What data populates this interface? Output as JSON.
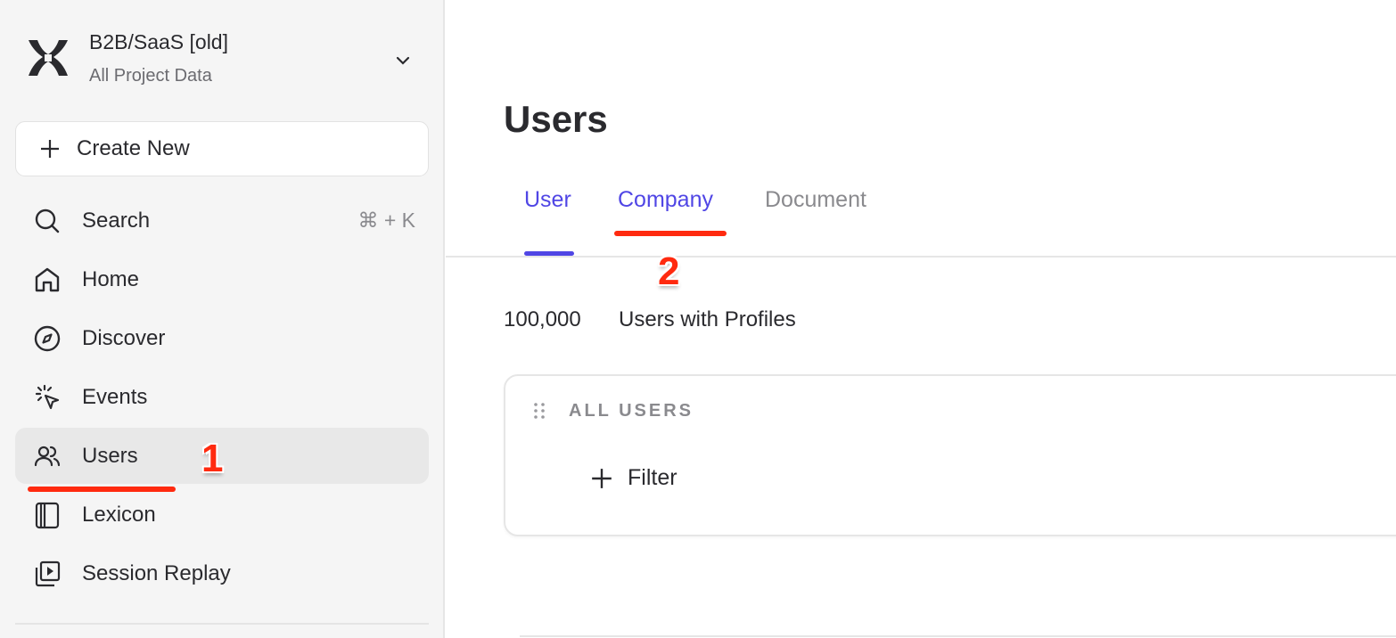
{
  "sidebar": {
    "project_title": "B2B/SaaS [old]",
    "project_subtitle": "All Project Data",
    "create_new": "Create New",
    "items": [
      {
        "label": "Search",
        "icon": "search-icon",
        "shortcut": "⌘ + K"
      },
      {
        "label": "Home",
        "icon": "home-icon"
      },
      {
        "label": "Discover",
        "icon": "compass-icon"
      },
      {
        "label": "Events",
        "icon": "cursor-click-icon"
      },
      {
        "label": "Users",
        "icon": "users-icon",
        "active": true
      },
      {
        "label": "Lexicon",
        "icon": "book-icon"
      },
      {
        "label": "Session Replay",
        "icon": "replay-icon"
      }
    ]
  },
  "main": {
    "title": "Users",
    "tabs": [
      {
        "label": "User",
        "active": true
      },
      {
        "label": "Company"
      },
      {
        "label": "Document"
      }
    ],
    "count": "100,000",
    "count_label": "Users with Profiles",
    "card": {
      "title": "ALL USERS",
      "filter_label": "Filter"
    }
  },
  "annotations": [
    "1",
    "2"
  ],
  "colors": {
    "accent": "#5046e5",
    "annotation": "#ff2a0f",
    "sidebar_bg": "#f5f5f5"
  }
}
